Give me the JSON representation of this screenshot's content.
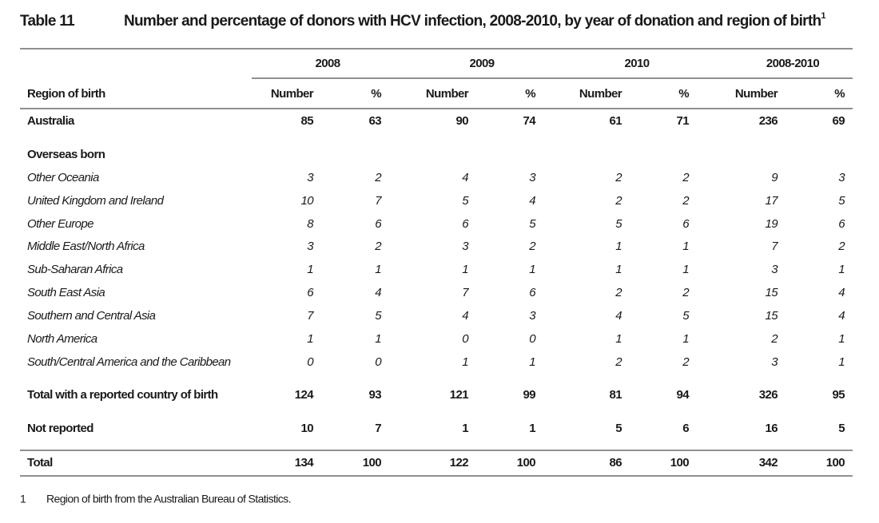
{
  "header": {
    "label": "Table 11",
    "title": "Number and percentage of donors with HCV infection, 2008-2010, by year of donation and region of birth",
    "title_note": "1"
  },
  "table": {
    "groups": [
      "2008",
      "2009",
      "2010",
      "2008-2010"
    ],
    "stub_header": "Region of birth",
    "column_headers": [
      "Number",
      "%",
      "Number",
      "%",
      "Number",
      "%",
      "Number",
      "%"
    ],
    "rows": [
      {
        "label": "Australia",
        "values": [
          85,
          63,
          90,
          74,
          61,
          71,
          236,
          69
        ]
      },
      {
        "label": "Overseas born"
      },
      {
        "label": "Other Oceania",
        "values": [
          3,
          2,
          4,
          3,
          2,
          2,
          9,
          3
        ]
      },
      {
        "label": "United Kingdom and Ireland",
        "values": [
          10,
          7,
          5,
          4,
          2,
          2,
          17,
          5
        ]
      },
      {
        "label": "Other Europe",
        "values": [
          8,
          6,
          6,
          5,
          5,
          6,
          19,
          6
        ]
      },
      {
        "label": "Middle East/North Africa",
        "values": [
          3,
          2,
          3,
          2,
          1,
          1,
          7,
          2
        ]
      },
      {
        "label": "Sub-Saharan Africa",
        "values": [
          1,
          1,
          1,
          1,
          1,
          1,
          3,
          1
        ]
      },
      {
        "label": "South East Asia",
        "values": [
          6,
          4,
          7,
          6,
          2,
          2,
          15,
          4
        ]
      },
      {
        "label": "Southern and Central Asia",
        "values": [
          7,
          5,
          4,
          3,
          4,
          5,
          15,
          4
        ]
      },
      {
        "label": "North America",
        "values": [
          1,
          1,
          0,
          0,
          1,
          1,
          2,
          1
        ]
      },
      {
        "label": "South/Central America and the Caribbean",
        "values": [
          0,
          0,
          1,
          1,
          2,
          2,
          3,
          1
        ]
      },
      {
        "label": "Total with a reported country of birth",
        "values": [
          124,
          93,
          121,
          99,
          81,
          94,
          326,
          95
        ]
      },
      {
        "label": "Not reported",
        "values": [
          10,
          7,
          1,
          1,
          5,
          6,
          16,
          5
        ]
      },
      {
        "label": "Total",
        "values": [
          134,
          100,
          122,
          100,
          86,
          100,
          342,
          100
        ]
      }
    ]
  },
  "footnotes": [
    {
      "marker": "1",
      "text": "Region of birth from the Australian Bureau of Statistics."
    }
  ]
}
